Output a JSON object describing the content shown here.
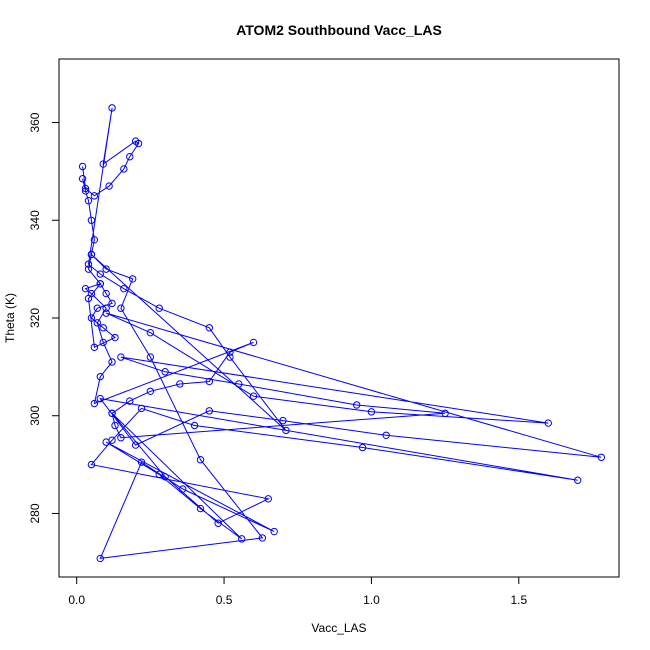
{
  "chart_data": {
    "type": "line",
    "title": "ATOM2 Southbound Vacc_LAS",
    "xlabel": "Vacc_LAS",
    "ylabel": "Theta (K)",
    "xlim": [
      -0.06,
      1.84
    ],
    "ylim": [
      267,
      373
    ],
    "x_ticks": [
      0.0,
      0.5,
      1.0,
      1.5
    ],
    "x_tick_labels": [
      "0.0",
      "0.5",
      "1.0",
      "1.5"
    ],
    "y_ticks": [
      280,
      300,
      320,
      340,
      360
    ],
    "y_tick_labels": [
      "280",
      "300",
      "320",
      "340",
      "360"
    ],
    "grid": false,
    "legend": "none",
    "markers": "open circles connected by lines",
    "color": "#0000ff",
    "series": [
      {
        "x": [
          0.02,
          0.03,
          0.04,
          0.05,
          0.06,
          0.05,
          0.04,
          0.08,
          0.1,
          0.12,
          0.07,
          0.05,
          0.09,
          0.13,
          0.06,
          0.04,
          0.08,
          0.03,
          0.05,
          0.1,
          0.07,
          0.09,
          0.12,
          0.08,
          0.06,
          0.6,
          0.52,
          0.45,
          0.35,
          0.25,
          0.18,
          0.12,
          0.13,
          0.15,
          1.25,
          0.95,
          0.55,
          0.3,
          0.15,
          1.6,
          1.0,
          0.6,
          0.25,
          0.1,
          1.78,
          1.05,
          0.7,
          0.45,
          0.2,
          0.08,
          1.7,
          0.97,
          0.4,
          0.22,
          0.12,
          0.05,
          0.65,
          0.48,
          0.3,
          0.12,
          0.56,
          0.42,
          0.28,
          0.1,
          0.67,
          0.36,
          0.22,
          0.08,
          0.63,
          0.42,
          0.25,
          0.15,
          0.19,
          0.1,
          0.05,
          0.71,
          0.52,
          0.45,
          0.28,
          0.16,
          0.08,
          0.04,
          0.12,
          0.09,
          0.2,
          0.21,
          0.18,
          0.16,
          0.11,
          0.06,
          0.03,
          0.02
        ],
        "y": [
          348.5,
          346,
          344,
          340,
          336,
          333,
          330,
          327,
          325,
          323,
          322,
          320,
          318,
          316,
          314,
          324,
          327,
          326,
          325,
          322,
          319,
          315,
          311,
          308,
          302.5,
          315,
          313,
          307,
          306.5,
          305,
          303,
          300.5,
          298,
          295.5,
          300.5,
          302.2,
          306.5,
          309,
          312,
          298.5,
          300.8,
          304,
          317,
          321,
          291.5,
          296,
          299,
          301,
          294,
          303.5,
          286.8,
          293.5,
          298,
          301.5,
          295,
          290,
          283,
          278,
          287.5,
          300.5,
          274.8,
          281,
          288,
          294.6,
          276.3,
          285,
          290.5,
          270.8,
          275,
          291,
          312,
          322,
          328,
          330,
          333,
          297,
          312,
          318,
          322,
          326,
          329,
          331,
          363,
          351.5,
          356.2,
          355.7,
          353,
          350.5,
          347,
          345,
          346.5,
          351
        ]
      }
    ]
  }
}
